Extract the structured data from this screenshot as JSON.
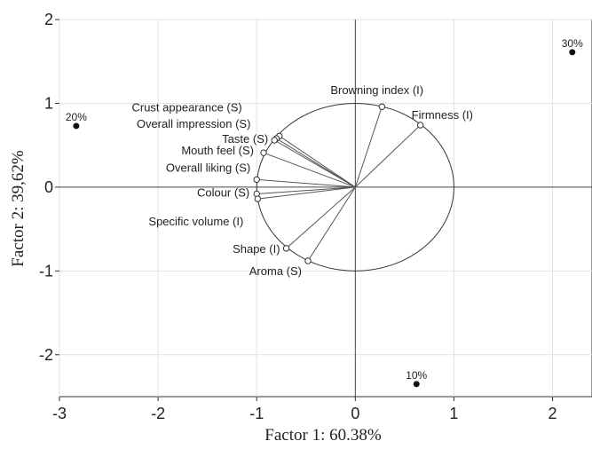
{
  "chart_data": {
    "type": "scatter",
    "subtype": "pca-biplot",
    "xlabel": "Factor 1: 60.38%",
    "ylabel": "Factor 2: 39,62%",
    "xlim": [
      -3,
      2.4
    ],
    "ylim": [
      -2.5,
      2
    ],
    "x_ticks": [
      -3,
      -2,
      -1,
      0,
      1,
      2
    ],
    "y_ticks": [
      -2,
      -1,
      0,
      1,
      2
    ],
    "grid": true,
    "unit_circle": true,
    "variables": [
      {
        "name": "Crust appearance (S)",
        "x": -0.77,
        "y": 0.61
      },
      {
        "name": "Overall impression (S)",
        "x": -0.8,
        "y": 0.58
      },
      {
        "name": "Taste (S)",
        "x": -0.82,
        "y": 0.56
      },
      {
        "name": "Mouth feel (S)",
        "x": -0.93,
        "y": 0.41
      },
      {
        "name": "Overall liking (S)",
        "x": -1.0,
        "y": 0.09
      },
      {
        "name": "Colour (S)",
        "x": -1.0,
        "y": -0.08
      },
      {
        "name": "Specific volume (I)",
        "x": -0.99,
        "y": -0.14
      },
      {
        "name": "Shape (I)",
        "x": -0.7,
        "y": -0.73
      },
      {
        "name": "Aroma (S)",
        "x": -0.48,
        "y": -0.88
      },
      {
        "name": "Browning index (I)",
        "x": 0.27,
        "y": 0.96
      },
      {
        "name": "Firmness (I)",
        "x": 0.66,
        "y": 0.74
      }
    ],
    "observations": [
      {
        "name": "20%",
        "x": -2.83,
        "y": 0.73
      },
      {
        "name": "30%",
        "x": 2.2,
        "y": 1.61
      },
      {
        "name": "10%",
        "x": 0.62,
        "y": -2.35
      }
    ]
  }
}
